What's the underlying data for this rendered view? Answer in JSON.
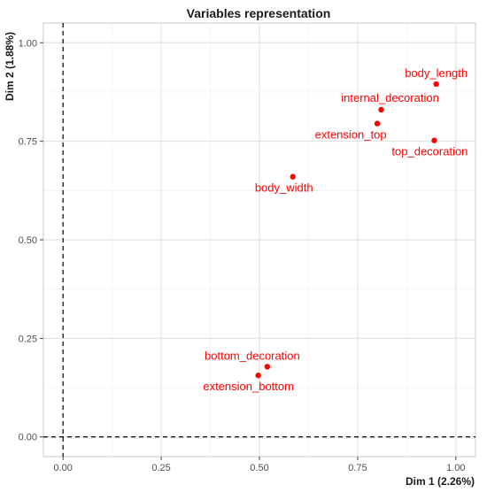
{
  "chart_data": {
    "type": "scatter",
    "title": "Variables representation",
    "xlabel": "Dim 1 (2.26%)",
    "ylabel": "Dim 2 (1.88%)",
    "xlim": [
      -0.05,
      1.05
    ],
    "ylim": [
      -0.05,
      1.05
    ],
    "x_ticks": [
      0.0,
      0.25,
      0.5,
      0.75,
      1.0
    ],
    "x_tick_labels": [
      "0.00",
      "0.25",
      "0.50",
      "0.75",
      "1.00"
    ],
    "y_ticks": [
      0.0,
      0.25,
      0.5,
      0.75,
      1.0
    ],
    "y_tick_labels": [
      "0.00",
      "0.25",
      "0.50",
      "0.75",
      "1.00"
    ],
    "grid": true,
    "reference_lines": {
      "x": 0,
      "y": 0,
      "style": "dashed"
    },
    "point_color": "#ff0000",
    "points": [
      {
        "label": "body_length",
        "x": 0.95,
        "y": 0.895
      },
      {
        "label": "internal_decoration",
        "x": 0.81,
        "y": 0.83
      },
      {
        "label": "extension_top",
        "x": 0.8,
        "y": 0.795
      },
      {
        "label": "top_decoration",
        "x": 0.945,
        "y": 0.752
      },
      {
        "label": "body_width",
        "x": 0.585,
        "y": 0.66
      },
      {
        "label": "bottom_decoration",
        "x": 0.52,
        "y": 0.178
      },
      {
        "label": "extension_bottom",
        "x": 0.497,
        "y": 0.156
      }
    ]
  }
}
